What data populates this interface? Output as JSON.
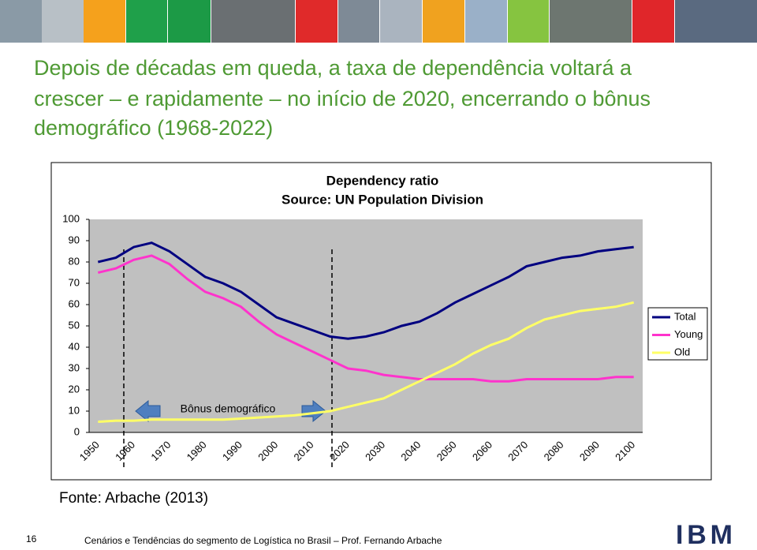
{
  "header": {
    "title_lines": [
      "Depois de décadas em queda, a taxa de dependência voltará a",
      "crescer – e rapidamente – no início de 2020, encerrando o bônus",
      "demográfico (1968-2022)"
    ]
  },
  "chart_data": {
    "type": "line",
    "title": "Dependency ratio",
    "subtitle": "Source: UN Population Division",
    "annotation": "Bônus demográfico",
    "categories": [
      "1950",
      null,
      "1960",
      null,
      "1970",
      null,
      "1980",
      null,
      "1990",
      null,
      "2000",
      null,
      "2010",
      null,
      "2020",
      null,
      "2030",
      null,
      "2040",
      null,
      "2050",
      null,
      "2060",
      null,
      "2070",
      null,
      "2080",
      null,
      "2090",
      null,
      "2100"
    ],
    "series": [
      {
        "name": "Total",
        "color": "#000080",
        "values": [
          80,
          82,
          87,
          89,
          85,
          79,
          73,
          70,
          66,
          60,
          54,
          51,
          48,
          45,
          44,
          45,
          47,
          50,
          52,
          56,
          61,
          65,
          69,
          73,
          78,
          80,
          82,
          83,
          85,
          86,
          87
        ]
      },
      {
        "name": "Young",
        "color": "#ff33cc",
        "values": [
          75,
          77,
          81,
          83,
          79,
          72,
          66,
          63,
          59,
          52,
          46,
          42,
          38,
          34,
          30,
          29,
          27,
          26,
          25,
          25,
          25,
          25,
          24,
          24,
          25,
          25,
          25,
          25,
          25,
          26,
          26
        ]
      },
      {
        "name": "Old",
        "color": "#ffff66",
        "values": [
          5,
          5.5,
          5.5,
          6,
          6,
          6,
          6,
          6,
          6.5,
          7,
          7.5,
          8,
          9,
          10,
          12,
          14,
          16,
          20,
          24,
          28,
          32,
          37,
          41,
          44,
          49,
          53,
          55,
          57,
          58,
          59,
          61
        ]
      }
    ],
    "ylim": [
      0,
      100
    ],
    "yticks": [
      0,
      10,
      20,
      30,
      40,
      50,
      60,
      70,
      80,
      90,
      100
    ],
    "plot_background": "#c0c0c0",
    "legend": "right"
  },
  "source": "Fonte: Arbache (2013)",
  "footer": {
    "page": "16",
    "text": "Cenários e Tendências do segmento de Logística no Brasil – Prof. Fernando Arbache",
    "logo": "IBM"
  }
}
